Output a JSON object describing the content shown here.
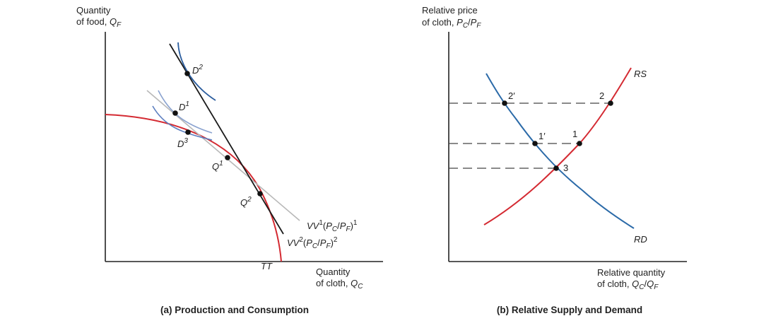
{
  "panel_a": {
    "y_label_1": "Quantity",
    "y_label_2": "of food, ",
    "y_label_var": "Q",
    "y_label_sub": "F",
    "x_label_1": "Quantity",
    "x_label_2": "of cloth, ",
    "x_label_var": "Q",
    "x_label_sub": "C",
    "caption": "(a) Production and Consumption",
    "tt_label": "TT",
    "points": {
      "D2": {
        "letter": "D",
        "sup": "2"
      },
      "D1": {
        "letter": "D",
        "sup": "1"
      },
      "D3": {
        "letter": "D",
        "sup": "3"
      },
      "Q1": {
        "letter": "Q",
        "sup": "1"
      },
      "Q2": {
        "letter": "Q",
        "sup": "2"
      }
    },
    "vv1": {
      "name": "VV",
      "sup": "1",
      "open": "(",
      "pc": "P",
      "pc_sub": "C",
      "slash": "/",
      "pf": "P",
      "pf_sub": "F",
      "close": ")",
      "exp": "1"
    },
    "vv2": {
      "name": "VV",
      "sup": "2",
      "open": "(",
      "pc": "P",
      "pc_sub": "C",
      "slash": "/",
      "pf": "P",
      "pf_sub": "F",
      "close": ")",
      "exp": "2"
    },
    "colors": {
      "tt": "#d42a32",
      "vv1": "#b8b8b8",
      "vv2": "#1a1a1a",
      "indiff_dark": "#2b5d9e",
      "indiff_light": "#8aa2cf"
    }
  },
  "panel_b": {
    "y_label_1": "Relative price",
    "y_label_2": "of cloth, ",
    "y_pc": "P",
    "y_pc_sub": "C",
    "y_slash": "/",
    "y_pf": "P",
    "y_pf_sub": "F",
    "x_label_1": "Relative quantity",
    "x_label_2": "of cloth, ",
    "x_qc": "Q",
    "x_qc_sub": "C",
    "x_slash": "/",
    "x_qf": "Q",
    "x_qf_sub": "F",
    "caption": "(b) Relative Supply and Demand",
    "rs_label": "RS",
    "rd_label": "RD",
    "point_labels": {
      "p2prime": "2′",
      "p2": "2",
      "p1prime": "1′",
      "p1": "1",
      "p3": "3"
    },
    "colors": {
      "rs": "#d42a32",
      "rd": "#2b6aa8"
    }
  }
}
